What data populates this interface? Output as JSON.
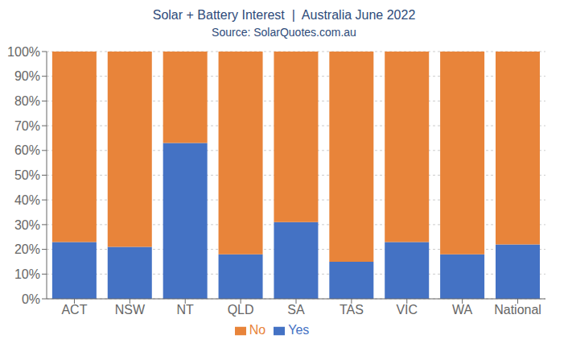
{
  "chart_data": {
    "type": "bar",
    "title": "Solar + Battery Interest  |  Australia June 2022",
    "subtitle": "Source: SolarQuotes.com.au",
    "categories": [
      "ACT",
      "NSW",
      "NT",
      "QLD",
      "SA",
      "TAS",
      "VIC",
      "WA",
      "National"
    ],
    "series": [
      {
        "name": "Yes",
        "color": "#4472C4",
        "values": [
          23,
          21,
          63,
          18,
          31,
          15,
          23,
          18,
          22
        ]
      },
      {
        "name": "No",
        "color": "#E8843A",
        "values": [
          77,
          79,
          37,
          82,
          69,
          85,
          77,
          82,
          78
        ]
      }
    ],
    "ylim": [
      0,
      100
    ],
    "yticks": [
      {
        "value": 0,
        "label": "0%"
      },
      {
        "value": 10,
        "label": "10%"
      },
      {
        "value": 20,
        "label": "20%"
      },
      {
        "value": 30,
        "label": "30%"
      },
      {
        "value": 40,
        "label": "40%"
      },
      {
        "value": 50,
        "label": "50%"
      },
      {
        "value": 60,
        "label": "60%"
      },
      {
        "value": 70,
        "label": "70%"
      },
      {
        "value": 80,
        "label": "80%"
      },
      {
        "value": 90,
        "label": "90%"
      },
      {
        "value": 100,
        "label": "100%"
      }
    ],
    "stacked": true,
    "grid": true,
    "legend": "bottom"
  }
}
